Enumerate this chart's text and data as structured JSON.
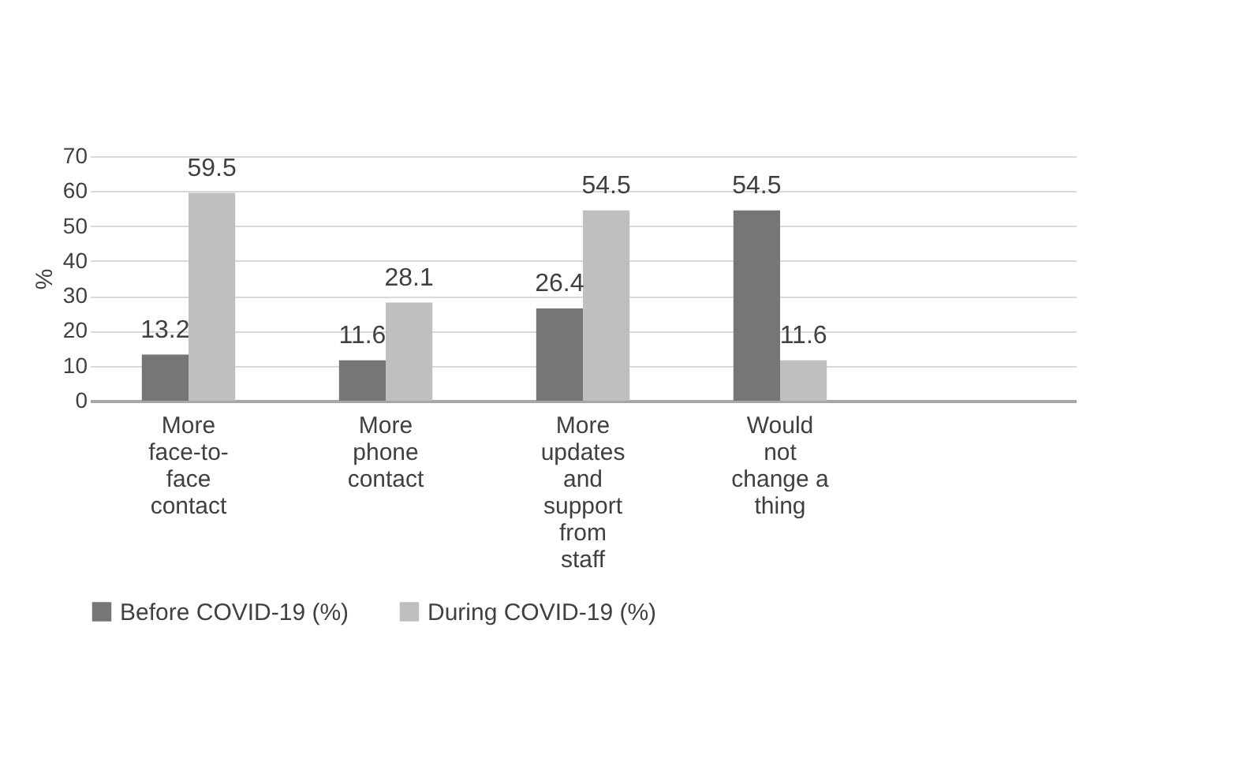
{
  "chart_data": {
    "type": "bar",
    "categories": [
      "More face-to-face contact",
      "More phone contact",
      "More updates and support from staff",
      "Would not change a thing",
      null
    ],
    "ylabel": "%",
    "ylim": [
      0,
      70
    ],
    "yticks": [
      0,
      10,
      20,
      30,
      40,
      50,
      60,
      70
    ],
    "grid": "y",
    "legend": "bottom",
    "data_labels": true,
    "series": [
      {
        "name": "Before COVID-19 (%)",
        "color": "#767676",
        "values": [
          13.2,
          11.6,
          26.4,
          54.5,
          null
        ]
      },
      {
        "name": "During COVID-19 (%)",
        "color": "#bfbfbf",
        "values": [
          59.5,
          28.1,
          54.5,
          11.6,
          null
        ]
      }
    ]
  }
}
